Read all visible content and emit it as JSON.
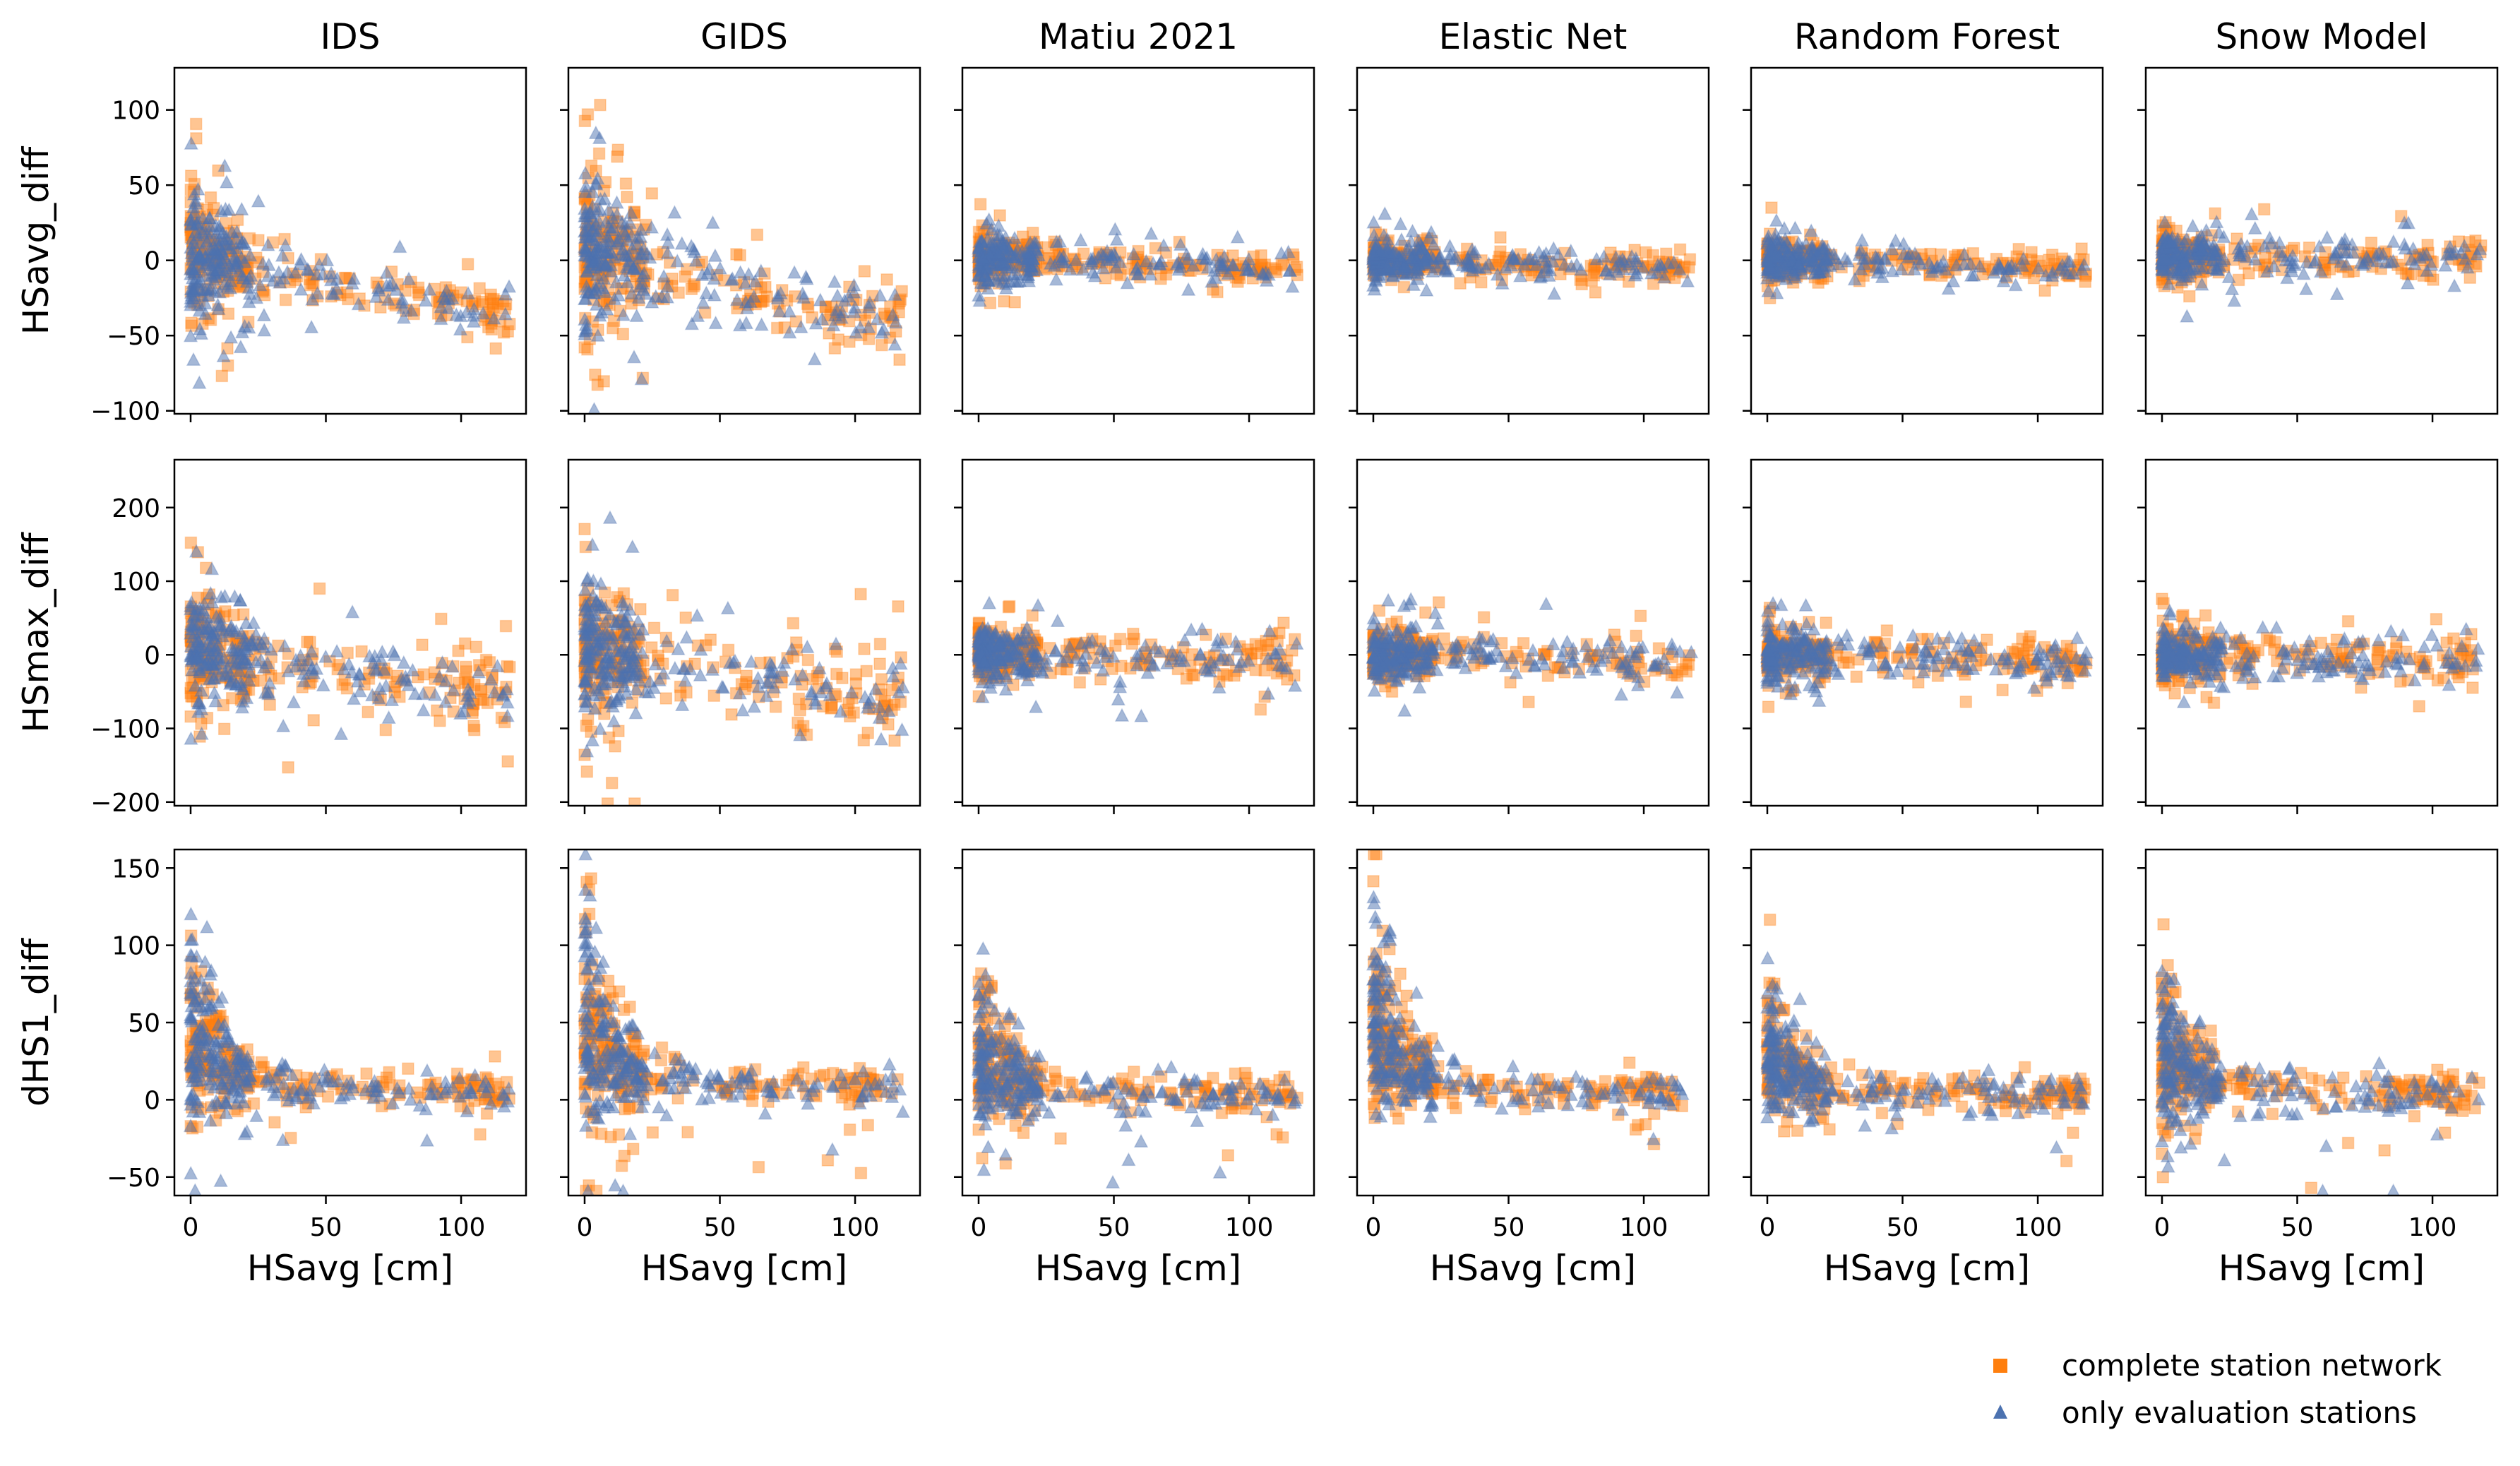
{
  "colors": {
    "complete": "#ff7f0e",
    "evaluation": "#4c72b0",
    "frame": "#000000",
    "background": "#ffffff"
  },
  "legend": {
    "complete": "complete station network",
    "evaluation": "only evaluation stations",
    "placement": "bottom-right"
  },
  "chart_data": {
    "type": "scatter",
    "layout": "3x6 grid of scatter subplots, shared x within columns, shared y within rows",
    "titles": [
      "IDS",
      "GIDS",
      "Matiu 2021",
      "Elastic Net",
      "Random Forest",
      "Snow Model"
    ],
    "xlabel": "HSavg [cm]",
    "xlim": [
      -6,
      124
    ],
    "xticks": [
      0,
      50,
      100
    ],
    "rows": [
      {
        "ylabel": "HSavg_diff",
        "ylim": [
          -102,
          128
        ],
        "yticks": [
          -100,
          -50,
          0,
          50,
          100
        ],
        "series_params": [
          {
            "ampHi": 42,
            "ampLo": 14,
            "trend": 0.36,
            "shift": 5
          },
          {
            "ampHi": 52,
            "ampLo": 18,
            "trend": 0.42,
            "shift": 6
          },
          {
            "ampHi": 18,
            "ampLo": 9,
            "trend": 0.06,
            "shift": 2
          },
          {
            "ampHi": 13,
            "ampLo": 9,
            "trend": 0.06,
            "shift": 1
          },
          {
            "ampHi": 14,
            "ampLo": 9,
            "trend": 0.06,
            "shift": 1
          },
          {
            "ampHi": 16,
            "ampLo": 12,
            "trend": 0.02,
            "shift": 3
          }
        ]
      },
      {
        "ylabel": "HSmax_diff",
        "ylim": [
          -205,
          265
        ],
        "yticks": [
          -200,
          -100,
          0,
          100,
          200
        ],
        "series_params": [
          {
            "ampHi": 80,
            "ampLo": 45,
            "trend": 0.55,
            "shift": 8
          },
          {
            "ampHi": 95,
            "ampLo": 55,
            "trend": 0.6,
            "shift": 10
          },
          {
            "ampHi": 40,
            "ampLo": 30,
            "trend": 0.05,
            "shift": 2
          },
          {
            "ampHi": 32,
            "ampLo": 28,
            "trend": 0.1,
            "shift": 1
          },
          {
            "ampHi": 34,
            "ampLo": 28,
            "trend": 0.1,
            "shift": 1
          },
          {
            "ampHi": 34,
            "ampLo": 32,
            "trend": 0.1,
            "shift": 1
          }
        ]
      },
      {
        "ylabel": "dHS1_diff",
        "ylim": [
          -62,
          162
        ],
        "yticks": [
          -50,
          0,
          50,
          100,
          150
        ],
        "series_params": [
          {
            "ampHi": 120,
            "ampLo": 22,
            "trend": 0,
            "shift": 6
          },
          {
            "ampHi": 130,
            "ampLo": 35,
            "trend": 0,
            "shift": 8
          },
          {
            "ampHi": 90,
            "ampLo": 20,
            "trend": 0,
            "shift": 4
          },
          {
            "ampHi": 135,
            "ampLo": 12,
            "trend": 0,
            "shift": 5
          },
          {
            "ampHi": 85,
            "ampLo": 15,
            "trend": 0,
            "shift": 4
          },
          {
            "ampHi": 85,
            "ampLo": 30,
            "trend": 0,
            "shift": 5
          }
        ]
      }
    ],
    "series": [
      {
        "name": "complete station network",
        "marker": "square",
        "color": "#ff7f0e",
        "alpha": 0.45
      },
      {
        "name": "only evaluation stations",
        "marker": "triangle",
        "color": "#4c72b0",
        "alpha": 0.5
      }
    ],
    "points_per_series_per_panel": 260
  }
}
